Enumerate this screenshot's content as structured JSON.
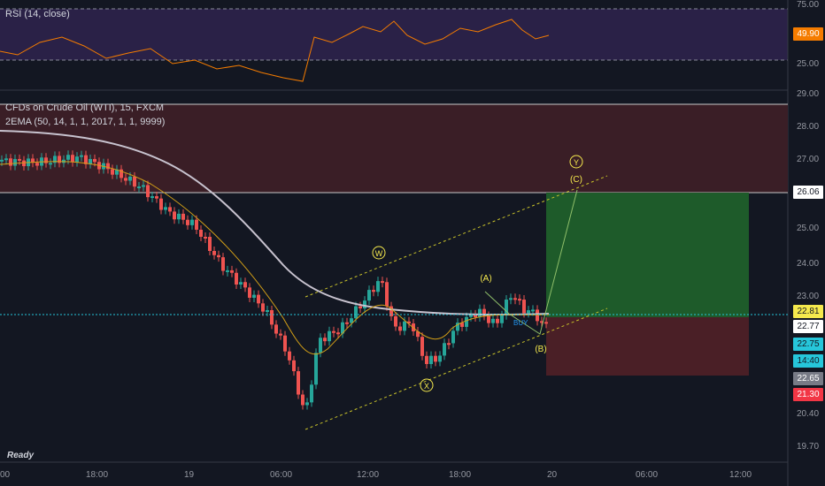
{
  "rsi_pane": {
    "label": "RSI (14, close)",
    "value_badge": "49.90",
    "axis": [
      "75.00",
      "50.00",
      "25.00"
    ]
  },
  "price_pane": {
    "symbol_label": "CFDs on Crude Oil (WTI), 15, FXCM",
    "indicator_label": "2EMA (50, 14, 1, 1, 2017, 1, 1, 9999)",
    "axis": [
      "29.00",
      "28.00",
      "27.00",
      "25.00",
      "24.00",
      "23.00",
      "20.40",
      "19.70"
    ],
    "badges": [
      {
        "text": "26.06",
        "bg": "#ffffff",
        "fg": "#131722"
      },
      {
        "text": "22.81",
        "bg": "#f5e94d",
        "fg": "#131722"
      },
      {
        "text": "22.77",
        "bg": "#ffffff",
        "fg": "#131722"
      },
      {
        "text": "22.75",
        "bg": "#26c6da",
        "fg": "#131722"
      },
      {
        "text": "14:40",
        "bg": "#26c6da",
        "fg": "#131722"
      },
      {
        "text": "22.65",
        "bg": "#787b86",
        "fg": "#ffffff"
      },
      {
        "text": "21.30",
        "bg": "#f23645",
        "fg": "#ffffff"
      }
    ],
    "wave_labels": [
      "W",
      "X",
      "Y",
      "(A)",
      "(B)",
      "(C)"
    ],
    "buy_label": "BUY"
  },
  "time_axis": [
    "00",
    "18:00",
    "19",
    "06:00",
    "12:00",
    "18:00",
    "20",
    "06:00",
    "12:00"
  ],
  "status_text": "Ready",
  "colors": {
    "background": "#131722",
    "rsi_band": "#2a2147",
    "rsi_line": "#f57c00",
    "candle_up": "#26a69a",
    "candle_down": "#ef5350",
    "ema_slow": "#c8c3cf",
    "ema_fast": "#d4a017",
    "channel": "#c8c22a",
    "target_zone": "#1e5b2a",
    "stop_zone": "#4a1f26",
    "resistance_zone": "#3a1e26",
    "current_price_line": "#26c6da"
  }
}
